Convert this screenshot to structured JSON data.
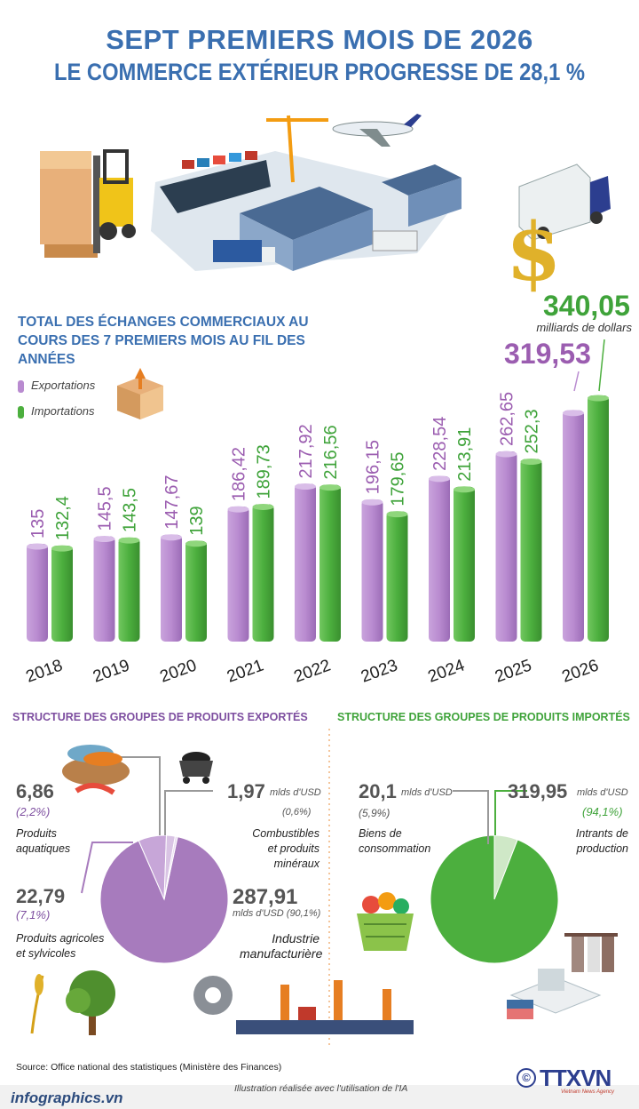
{
  "header": {
    "title_line1": "SEPT PREMIERS MOIS DE 2026",
    "title_line2": "LE COMMERCE EXTÉRIEUR PROGRESSE DE 28,1 %"
  },
  "chart": {
    "title": "TOTAL DES ÉCHANGES COMMERCIAUX AU COURS DES 7 PREMIERS MOIS AU FIL DES ANNÉES",
    "legend_exports": "Exportations",
    "legend_imports": "Importations",
    "highlight_import_value": "340,05",
    "highlight_unit": "milliards de dollars",
    "highlight_export_value": "319,53"
  },
  "chart_data": {
    "type": "bar",
    "title": "TOTAL DES ÉCHANGES COMMERCIAUX AU COURS DES 7 PREMIERS MOIS AU FIL DES ANNÉES",
    "categories": [
      "2018",
      "2019",
      "2020",
      "2021",
      "2022",
      "2023",
      "2024",
      "2025",
      "2026"
    ],
    "series": [
      {
        "name": "Exportations",
        "color": "#b98bd0",
        "values": [
          135,
          145.5,
          147.67,
          186.42,
          217.92,
          196.15,
          228.54,
          262.65,
          319.53
        ],
        "labels": [
          "135",
          "145,5",
          "147,67",
          "186,42",
          "217,92",
          "196,15",
          "228,54",
          "262,65",
          ""
        ]
      },
      {
        "name": "Importations",
        "color": "#4caf3e",
        "values": [
          132.4,
          143.5,
          139,
          189.73,
          216.56,
          179.65,
          213.91,
          252.3,
          340.05
        ],
        "labels": [
          "132,4",
          "143,5",
          "139",
          "189,73",
          "216,56",
          "179,65",
          "213,91",
          "252,3",
          ""
        ]
      }
    ],
    "ylim": [
      0,
      340.05
    ]
  },
  "exports_structure": {
    "title": "STRUCTURE DES GROUPES DE PRODUITS EXPORTÉS",
    "items": [
      {
        "value": "6,86",
        "pct": "(2,2%)",
        "label_l1": "Produits",
        "label_l2": "aquatiques",
        "share": 2.2
      },
      {
        "value": "1,97",
        "unit": "mlds d'USD",
        "pct": "(0,6%)",
        "label_l1": "Combustibles",
        "label_l2": "et produits minéraux",
        "share": 0.6
      },
      {
        "value": "22,79",
        "pct": "(7,1%)",
        "label_l1": "Produits agricoles",
        "label_l2": "et sylvicoles",
        "share": 7.1
      },
      {
        "value": "287,91",
        "unit_pct": "mlds d'USD (90,1%)",
        "label_l1": "Industrie",
        "label_l2": "manufacturière",
        "share": 90.1
      }
    ],
    "colors": {
      "main": "#a77bbd",
      "light": "#d9c4e4",
      "mid": "#c7a6d8"
    }
  },
  "imports_structure": {
    "title": "STRUCTURE DES GROUPES DE PRODUITS IMPORTÉS",
    "items": [
      {
        "value": "20,1",
        "unit": "mlds d'USD",
        "pct": "(5,9%)",
        "label_l1": "Biens de",
        "label_l2": "consommation",
        "share": 5.9
      },
      {
        "value": "319,95",
        "unit": "mlds d'USD",
        "pct": "(94,1%)",
        "label_l1": "Intrants de",
        "label_l2": "production",
        "share": 94.1
      }
    ],
    "colors": {
      "main": "#4caf3e",
      "light": "#cfe8c7"
    }
  },
  "footer": {
    "source": "Source: Office national des statistiques (Ministère des Finances)",
    "site": "infographics.vn",
    "ia_note": "Illustration réalisée avec l'utilisation de l'IA",
    "copyright": "©",
    "brand": "TTXVN",
    "brand_sub": "Vietnam News Agency"
  }
}
